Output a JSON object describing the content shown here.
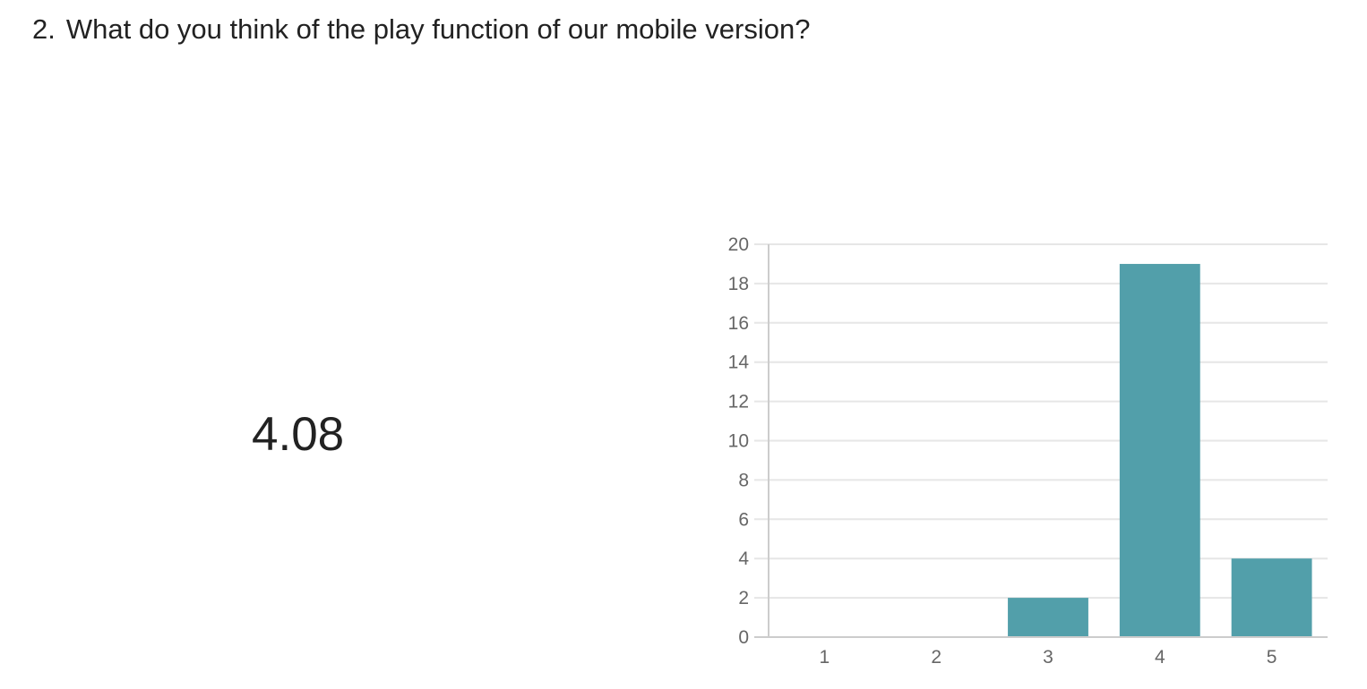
{
  "question": {
    "number": "2.",
    "text": "What do you think of the play function of our mobile version?"
  },
  "average": "4.08",
  "colors": {
    "bar": "#529faa",
    "grid": "#e6e6e6",
    "axis": "#cccccc",
    "tick_text": "#666666",
    "text": "#222222"
  },
  "chart_data": {
    "type": "bar",
    "categories": [
      "1",
      "2",
      "3",
      "4",
      "5"
    ],
    "values": [
      0,
      0,
      2,
      19,
      4
    ],
    "title": "",
    "xlabel": "",
    "ylabel": "",
    "ylim": [
      0,
      20
    ],
    "yticks": [
      0,
      2,
      4,
      6,
      8,
      10,
      12,
      14,
      16,
      18,
      20
    ],
    "grid": true,
    "legend": "none"
  }
}
